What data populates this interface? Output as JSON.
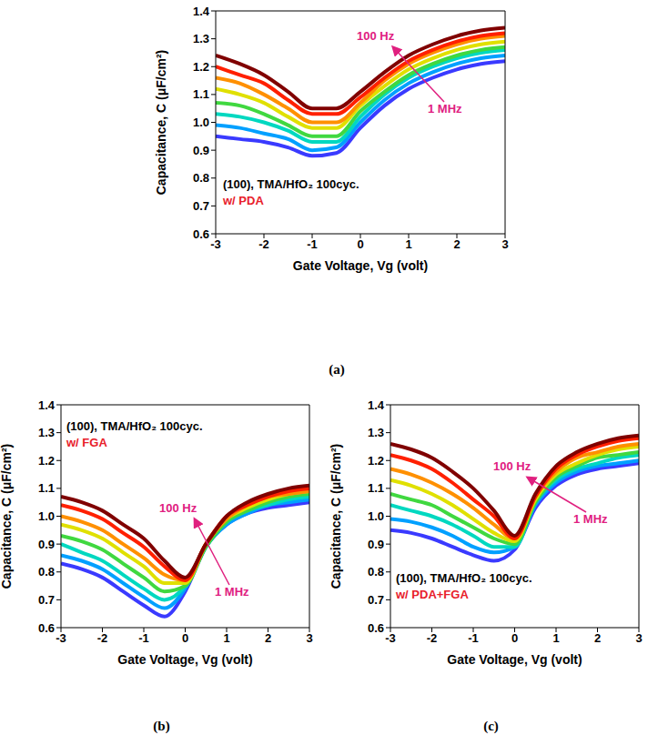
{
  "chart_data": [
    {
      "type": "line",
      "title": "(a)",
      "x_label": "Gate Voltage, Vg (volt)",
      "y_label": "Capacitance, C (μF/cm²)",
      "annotations": [
        "(100), TMA/HfO₂ 100cyc.",
        "w/ PDA",
        "100 Hz",
        "1 MHz"
      ],
      "xlim": [
        -3,
        3
      ],
      "xticks": [
        -3,
        -2,
        -1,
        0,
        1,
        2,
        3
      ],
      "ylim": [
        0.6,
        1.4
      ],
      "yticks": [
        0.6,
        0.7,
        0.8,
        0.9,
        {
          "value": 1,
          "label": "1.0"
        },
        1.1,
        1.2,
        1.3,
        1.4
      ],
      "grid": false,
      "x": [
        -3,
        -2.5,
        -2,
        -1.5,
        -1,
        -0.5,
        0,
        0.5,
        1,
        1.5,
        2,
        2.5,
        3
      ],
      "series": [
        {
          "color": "#3a3aff",
          "values": [
            0.95,
            0.94,
            0.93,
            0.91,
            0.88,
            0.89,
            0.98,
            1.06,
            1.12,
            1.16,
            1.19,
            1.21,
            1.22
          ]
        },
        {
          "color": "#00a0ff",
          "values": [
            0.99,
            0.98,
            0.96,
            0.94,
            0.9,
            0.91,
            1.0,
            1.08,
            1.14,
            1.18,
            1.21,
            1.23,
            1.24
          ]
        },
        {
          "color": "#00d8c0",
          "values": [
            1.03,
            1.02,
            1.0,
            0.97,
            0.93,
            0.93,
            1.02,
            1.1,
            1.16,
            1.2,
            1.23,
            1.25,
            1.26
          ]
        },
        {
          "color": "#40d840",
          "values": [
            1.07,
            1.06,
            1.03,
            0.99,
            0.95,
            0.95,
            1.04,
            1.11,
            1.17,
            1.21,
            1.24,
            1.26,
            1.27
          ]
        },
        {
          "color": "#e0e000",
          "values": [
            1.12,
            1.1,
            1.07,
            1.02,
            0.98,
            0.98,
            1.06,
            1.13,
            1.19,
            1.23,
            1.26,
            1.28,
            1.29
          ]
        },
        {
          "color": "#ff9000",
          "values": [
            1.16,
            1.14,
            1.1,
            1.05,
            1.0,
            1.0,
            1.07,
            1.15,
            1.21,
            1.25,
            1.28,
            1.3,
            1.31
          ]
        },
        {
          "color": "#ff2000",
          "values": [
            1.2,
            1.17,
            1.14,
            1.08,
            1.03,
            1.03,
            1.09,
            1.16,
            1.22,
            1.26,
            1.29,
            1.31,
            1.32
          ]
        },
        {
          "color": "#800000",
          "values": [
            1.24,
            1.21,
            1.17,
            1.11,
            1.05,
            1.05,
            1.11,
            1.18,
            1.24,
            1.28,
            1.31,
            1.33,
            1.34
          ]
        }
      ]
    },
    {
      "type": "line",
      "title": "(b)",
      "x_label": "Gate Voltage, Vg (volt)",
      "y_label": "Capacitance, C (μF/cm²)",
      "annotations": [
        "(100), TMA/HfO₂ 100cyc.",
        "w/ FGA",
        "100 Hz",
        "1 MHz"
      ],
      "xlim": [
        -3,
        3
      ],
      "xticks": [
        -3,
        -2,
        -1,
        0,
        1,
        2,
        3
      ],
      "ylim": [
        0.6,
        1.4
      ],
      "yticks": [
        0.6,
        0.7,
        0.8,
        0.9,
        {
          "value": 1,
          "label": "1.0"
        },
        1.1,
        1.2,
        1.3,
        1.4
      ],
      "grid": false,
      "x": [
        -3,
        -2.5,
        -2,
        -1.5,
        -1,
        -0.5,
        0,
        0.5,
        1,
        1.5,
        2,
        2.5,
        3
      ],
      "series": [
        {
          "color": "#3a3aff",
          "values": [
            0.83,
            0.81,
            0.78,
            0.73,
            0.68,
            0.64,
            0.73,
            0.89,
            0.97,
            1.01,
            1.03,
            1.04,
            1.05
          ]
        },
        {
          "color": "#00a0ff",
          "values": [
            0.86,
            0.84,
            0.81,
            0.76,
            0.71,
            0.67,
            0.74,
            0.89,
            0.97,
            1.01,
            1.04,
            1.05,
            1.06
          ]
        },
        {
          "color": "#00d8c0",
          "values": [
            0.9,
            0.87,
            0.84,
            0.79,
            0.74,
            0.7,
            0.75,
            0.89,
            0.98,
            1.02,
            1.04,
            1.06,
            1.07
          ]
        },
        {
          "color": "#40d840",
          "values": [
            0.93,
            0.91,
            0.88,
            0.83,
            0.78,
            0.73,
            0.75,
            0.89,
            0.98,
            1.02,
            1.05,
            1.07,
            1.08
          ]
        },
        {
          "color": "#e0e000",
          "values": [
            0.97,
            0.95,
            0.92,
            0.87,
            0.82,
            0.76,
            0.76,
            0.9,
            0.99,
            1.03,
            1.06,
            1.08,
            1.09
          ]
        },
        {
          "color": "#ff9000",
          "values": [
            1.0,
            0.98,
            0.95,
            0.9,
            0.85,
            0.79,
            0.77,
            0.9,
            0.99,
            1.04,
            1.07,
            1.08,
            1.09
          ]
        },
        {
          "color": "#ff2000",
          "values": [
            1.04,
            1.02,
            0.99,
            0.94,
            0.89,
            0.82,
            0.77,
            0.9,
            1.0,
            1.04,
            1.07,
            1.09,
            1.1
          ]
        },
        {
          "color": "#800000",
          "values": [
            1.07,
            1.05,
            1.02,
            0.97,
            0.92,
            0.84,
            0.78,
            0.9,
            1.0,
            1.05,
            1.08,
            1.1,
            1.11
          ]
        }
      ]
    },
    {
      "type": "line",
      "title": "(c)",
      "x_label": "Gate Voltage, Vg (volt)",
      "y_label": "Capacitance, C (μF/cm²)",
      "annotations": [
        "(100), TMA/HfO₂ 100cyc.",
        "w/ PDA+FGA",
        "100 Hz",
        "1 MHz"
      ],
      "xlim": [
        -3,
        3
      ],
      "xticks": [
        -3,
        -2,
        -1,
        0,
        1,
        2,
        3
      ],
      "ylim": [
        0.6,
        1.4
      ],
      "yticks": [
        0.6,
        0.7,
        0.8,
        0.9,
        {
          "value": 1,
          "label": "1.0"
        },
        1.1,
        1.2,
        1.3,
        1.4
      ],
      "grid": false,
      "x": [
        -3,
        -2.5,
        -2,
        -1.5,
        -1,
        -0.5,
        0,
        0.5,
        1,
        1.5,
        2,
        2.5,
        3
      ],
      "series": [
        {
          "color": "#3a3aff",
          "values": [
            0.95,
            0.94,
            0.92,
            0.89,
            0.86,
            0.84,
            0.88,
            1.03,
            1.11,
            1.15,
            1.17,
            1.18,
            1.19
          ]
        },
        {
          "color": "#00a0ff",
          "values": [
            0.99,
            0.98,
            0.96,
            0.93,
            0.89,
            0.87,
            0.89,
            1.04,
            1.12,
            1.16,
            1.18,
            1.19,
            1.2
          ]
        },
        {
          "color": "#00d8c0",
          "values": [
            1.04,
            1.02,
            1.0,
            0.97,
            0.93,
            0.89,
            0.89,
            1.05,
            1.13,
            1.17,
            1.19,
            1.21,
            1.22
          ]
        },
        {
          "color": "#40d840",
          "values": [
            1.08,
            1.06,
            1.04,
            1.0,
            0.96,
            0.92,
            0.9,
            1.05,
            1.14,
            1.18,
            1.21,
            1.22,
            1.23
          ]
        },
        {
          "color": "#e0e000",
          "values": [
            1.13,
            1.11,
            1.08,
            1.04,
            0.99,
            0.94,
            0.91,
            1.06,
            1.15,
            1.19,
            1.22,
            1.24,
            1.25
          ]
        },
        {
          "color": "#ff9000",
          "values": [
            1.17,
            1.15,
            1.12,
            1.08,
            1.03,
            0.97,
            0.92,
            1.07,
            1.16,
            1.21,
            1.23,
            1.25,
            1.26
          ]
        },
        {
          "color": "#ff2000",
          "values": [
            1.22,
            1.2,
            1.17,
            1.12,
            1.06,
            1.0,
            0.92,
            1.07,
            1.17,
            1.22,
            1.25,
            1.27,
            1.28
          ]
        },
        {
          "color": "#800000",
          "values": [
            1.26,
            1.24,
            1.21,
            1.16,
            1.1,
            1.02,
            0.93,
            1.08,
            1.18,
            1.23,
            1.26,
            1.28,
            1.29
          ]
        }
      ]
    }
  ]
}
